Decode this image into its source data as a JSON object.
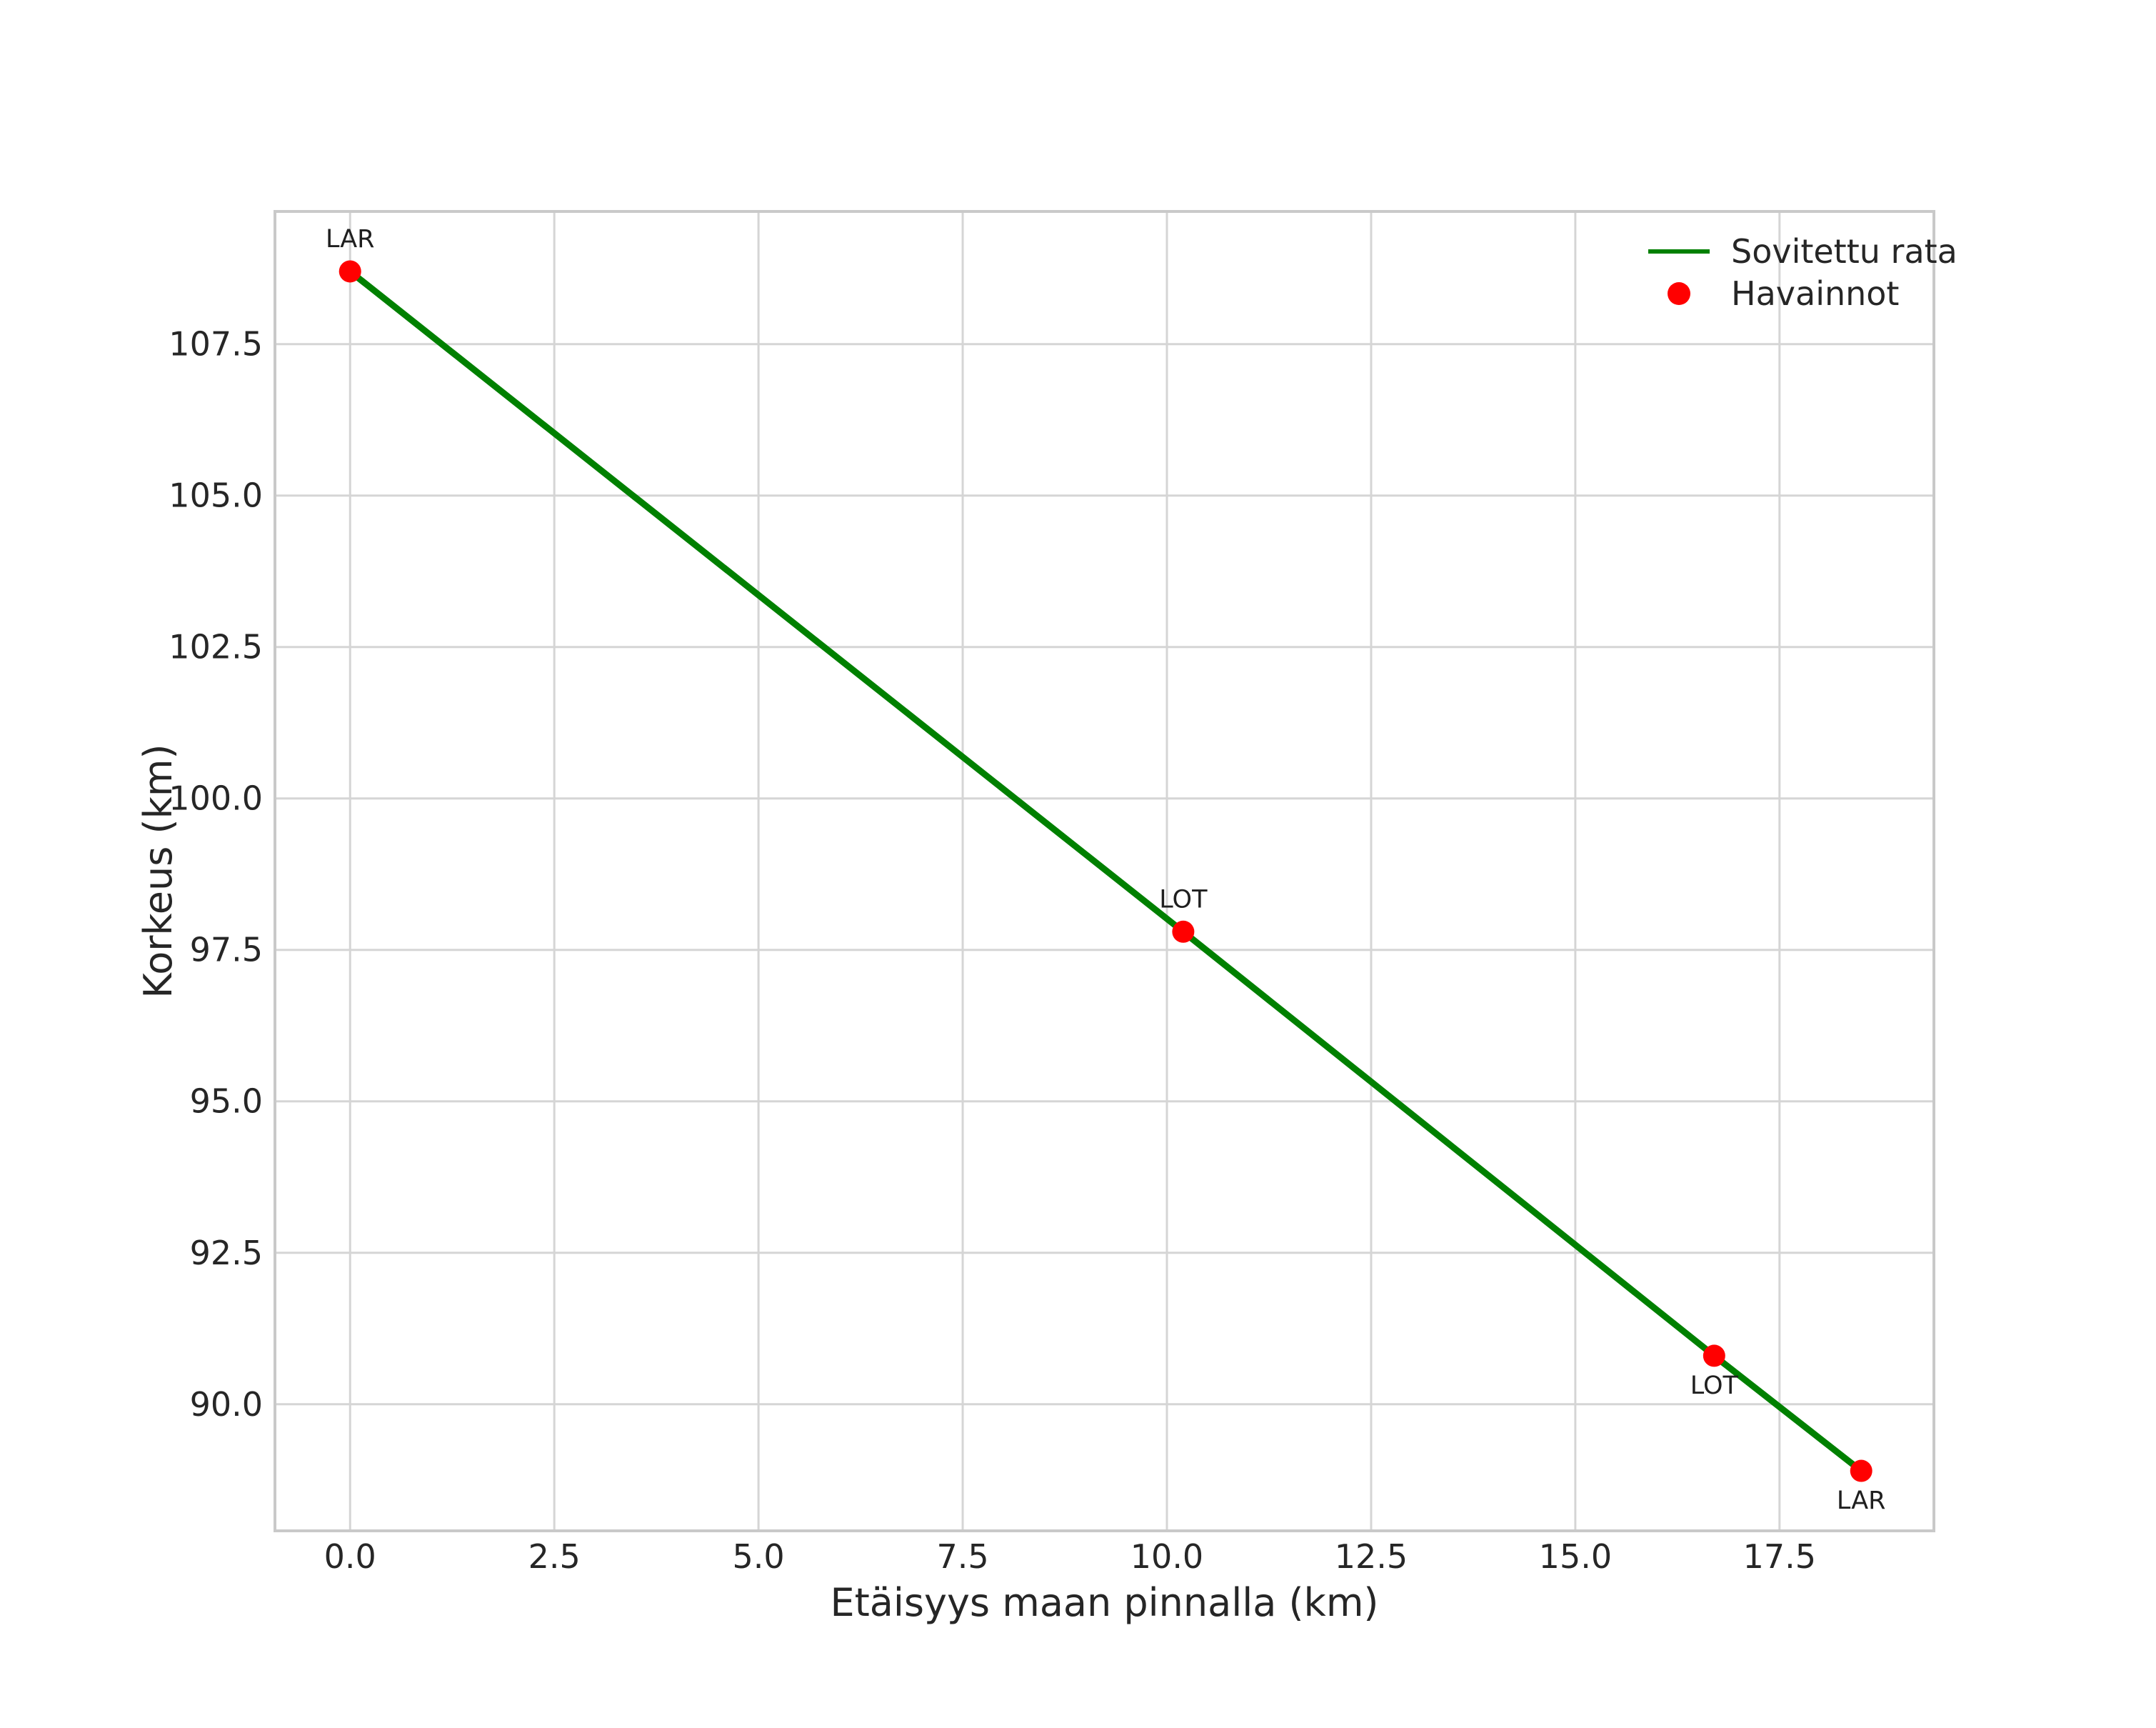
{
  "chart_data": {
    "type": "line",
    "title": "",
    "xlabel": "Etäisyys maan pinnalla (km)",
    "ylabel": "Korkeus (km)",
    "xlim": [
      -0.92,
      19.39
    ],
    "ylim": [
      87.91,
      109.69
    ],
    "grid": true,
    "x_tick_values": [
      0.0,
      2.5,
      5.0,
      7.5,
      10.0,
      12.5,
      15.0,
      17.5
    ],
    "x_ticks": [
      "0.0",
      "2.5",
      "5.0",
      "7.5",
      "10.0",
      "12.5",
      "15.0",
      "17.5"
    ],
    "y_tick_values": [
      90.0,
      92.5,
      95.0,
      97.5,
      100.0,
      102.5,
      105.0,
      107.5
    ],
    "y_ticks": [
      "90.0",
      "92.5",
      "95.0",
      "97.5",
      "100.0",
      "102.5",
      "105.0",
      "107.5"
    ],
    "legend": {
      "position": "upper-right",
      "frame": false,
      "entries": [
        {
          "label": "Sovitettu rata",
          "kind": "line",
          "color": "#008000"
        },
        {
          "label": "Havainnot",
          "kind": "marker",
          "color": "#ff0000"
        }
      ]
    },
    "series": [
      {
        "name": "Sovitettu rata",
        "kind": "line",
        "color": "#008000",
        "x": [
          0.0,
          10.2,
          16.7,
          18.5
        ],
        "y": [
          108.7,
          97.8,
          90.8,
          88.9
        ]
      },
      {
        "name": "Havainnot",
        "kind": "scatter",
        "color": "#ff0000",
        "x": [
          0.0,
          10.2,
          16.7,
          18.5
        ],
        "y": [
          108.7,
          97.8,
          90.8,
          88.9
        ],
        "point_labels": [
          {
            "text": "LAR",
            "placement": "above"
          },
          {
            "text": "LOT",
            "placement": "above"
          },
          {
            "text": "LOT",
            "placement": "below"
          },
          {
            "text": "LAR",
            "placement": "below"
          }
        ]
      }
    ],
    "colors": {
      "background": "#ffffff",
      "grid": "#d5d5d5",
      "spine": "#c9c9c9",
      "text": "#262626",
      "annotation": "#1f1f1f",
      "line": "#008000",
      "marker": "#ff0000"
    }
  }
}
